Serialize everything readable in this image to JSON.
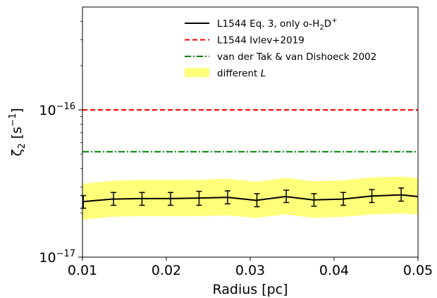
{
  "chart_data": {
    "type": "line",
    "xlabel": "Radius [pc]",
    "ylabel": "ζ₂ [s⁻¹]",
    "ylabel_parts": {
      "greek": "ζ",
      "sub": "2",
      "unit": "[s",
      "sup": "−1",
      "close": "]"
    },
    "x_scale": "linear",
    "y_scale": "log",
    "xlim": [
      0.01,
      0.05
    ],
    "ylim": [
      1e-17,
      5e-16
    ],
    "x_ticks": [
      0.01,
      0.02,
      0.03,
      0.04,
      0.05
    ],
    "x_tick_labels": [
      "0.01",
      "0.02",
      "0.03",
      "0.04",
      "0.05"
    ],
    "y_major_ticks": [
      1e-17,
      1e-16
    ],
    "y_tick_labels": [
      {
        "base": "10",
        "exp": "−17"
      },
      {
        "base": "10",
        "exp": "−16"
      }
    ],
    "grid": false,
    "legend_position": "upper-right",
    "series": [
      {
        "name": "L1544 Eq. 3, only o-H₂D⁺",
        "legend_parts": {
          "pre": "L1544 Eq. 3, only o-H",
          "sub": "2",
          "mid": "D",
          "sup": "+"
        },
        "style": "solid",
        "color": "#000000",
        "x": [
          0.01,
          0.0135,
          0.017,
          0.0205,
          0.024,
          0.0273,
          0.0307,
          0.0342,
          0.0375,
          0.041,
          0.0445,
          0.048,
          0.05
        ],
        "y": [
          2.38e-17,
          2.48e-17,
          2.5e-17,
          2.5e-17,
          2.52e-17,
          2.55e-17,
          2.43e-17,
          2.58e-17,
          2.45e-17,
          2.48e-17,
          2.6e-17,
          2.65e-17,
          2.58e-17
        ],
        "errorbars": {
          "x": [
            0.0101,
            0.0137,
            0.0171,
            0.0205,
            0.0239,
            0.0273,
            0.0308,
            0.0343,
            0.0376,
            0.0411,
            0.0445,
            0.048
          ],
          "y": [
            2.38e-17,
            2.48e-17,
            2.5e-17,
            2.5e-17,
            2.52e-17,
            2.55e-17,
            2.43e-17,
            2.58e-17,
            2.45e-17,
            2.48e-17,
            2.6e-17,
            2.65e-17
          ],
          "low": [
            2.15e-17,
            2.25e-17,
            2.25e-17,
            2.25e-17,
            2.25e-17,
            2.3e-17,
            2.2e-17,
            2.35e-17,
            2.22e-17,
            2.25e-17,
            2.35e-17,
            2.4e-17
          ],
          "high": [
            2.62e-17,
            2.75e-17,
            2.75e-17,
            2.75e-17,
            2.8e-17,
            2.82e-17,
            2.7e-17,
            2.85e-17,
            2.7e-17,
            2.75e-17,
            2.88e-17,
            2.95e-17
          ]
        }
      },
      {
        "name": "L1544 Ivlev+2019",
        "style": "dashed",
        "color": "#ff0000",
        "x": [
          0.01,
          0.05
        ],
        "y": [
          1e-16,
          1e-16
        ]
      },
      {
        "name": "van der Tak & van Dishoeck 2002",
        "style": "dashdot",
        "color": "#008000",
        "x": [
          0.01,
          0.05
        ],
        "y": [
          5.2e-17,
          5.2e-17
        ]
      },
      {
        "name": "different L",
        "legend_parts": {
          "pre": "different ",
          "italic": "L"
        },
        "style": "band",
        "color": "#ffff7a",
        "x": [
          0.01,
          0.0135,
          0.017,
          0.0205,
          0.024,
          0.0273,
          0.0307,
          0.0342,
          0.0375,
          0.041,
          0.0445,
          0.048,
          0.05
        ],
        "lower": [
          1.8e-17,
          1.88e-17,
          1.9e-17,
          1.9e-17,
          1.9e-17,
          1.92e-17,
          1.85e-17,
          1.95e-17,
          1.85e-17,
          1.88e-17,
          1.95e-17,
          1.98e-17,
          1.95e-17
        ],
        "upper": [
          3.15e-17,
          3.3e-17,
          3.35e-17,
          3.35e-17,
          3.35e-17,
          3.4e-17,
          3.25e-17,
          3.45e-17,
          3.28e-17,
          3.32e-17,
          3.48e-17,
          3.52e-17,
          3.45e-17
        ]
      }
    ]
  }
}
